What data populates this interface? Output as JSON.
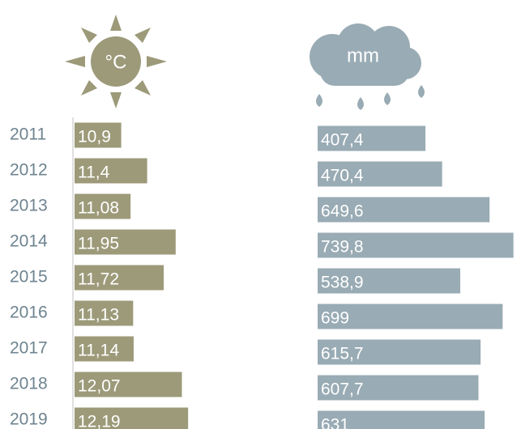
{
  "chart_data": {
    "type": "bar",
    "categories": [
      "2011",
      "2012",
      "2013",
      "2014",
      "2015",
      "2016",
      "2017",
      "2018",
      "2019"
    ],
    "series": [
      {
        "name": "°C",
        "color": "#9c9a79",
        "xlim": [
          10,
          13
        ],
        "values": [
          10.9,
          11.4,
          11.08,
          11.95,
          11.72,
          11.13,
          11.14,
          12.07,
          12.19
        ],
        "value_labels": [
          "10,9",
          "11,4",
          "11,08",
          "11,95",
          "11,72",
          "11,13",
          "11,14",
          "12,07",
          "12,19"
        ]
      },
      {
        "name": "mm",
        "color": "#99abb4",
        "xlim": [
          0,
          750
        ],
        "values": [
          407.4,
          470.4,
          649.6,
          739.8,
          538.9,
          699,
          615.7,
          607.7,
          631
        ],
        "value_labels": [
          "407,4",
          "470,4",
          "649,6",
          "739,8",
          "538,9",
          "699",
          "615,7",
          "607,7",
          "631"
        ]
      }
    ]
  }
}
